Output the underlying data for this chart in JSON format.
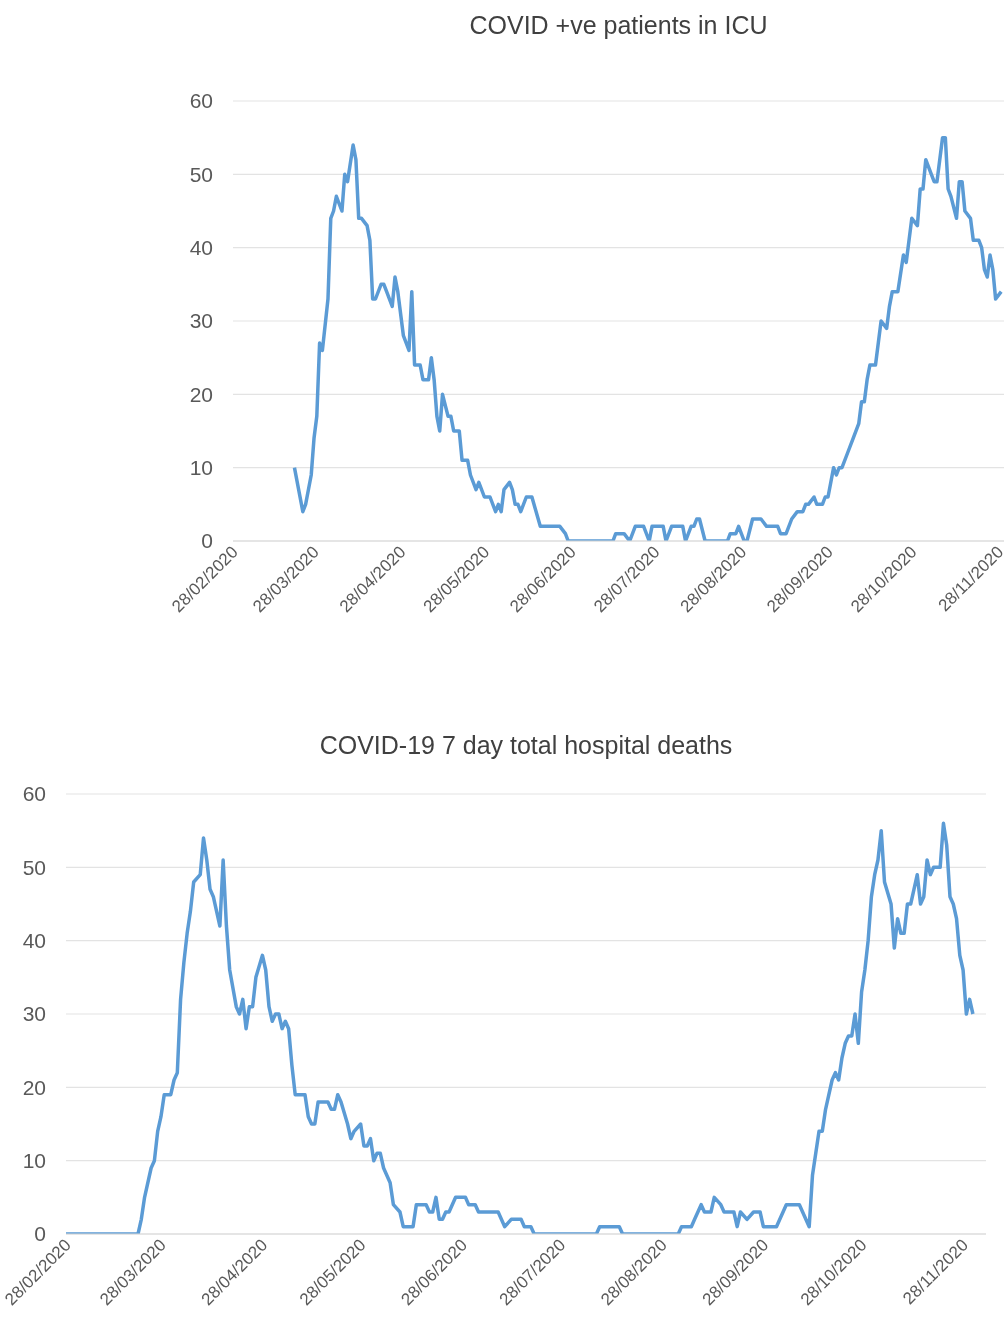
{
  "chart_data": [
    {
      "type": "line",
      "title": "COVID +ve patients in ICU",
      "x": [
        "2020-03-21",
        "2020-03-24",
        "2020-03-25",
        "2020-03-27",
        "2020-03-28",
        "2020-03-29",
        "2020-03-30",
        "2020-03-31",
        "2020-04-02",
        "2020-04-03",
        "2020-04-04",
        "2020-04-05",
        "2020-04-07",
        "2020-04-08",
        "2020-04-09",
        "2020-04-11",
        "2020-04-12",
        "2020-04-13",
        "2020-04-14",
        "2020-04-16",
        "2020-04-17",
        "2020-04-18",
        "2020-04-19",
        "2020-04-21",
        "2020-04-22",
        "2020-04-23",
        "2020-04-25",
        "2020-04-26",
        "2020-04-27",
        "2020-04-29",
        "2020-05-01",
        "2020-05-02",
        "2020-05-03",
        "2020-05-05",
        "2020-05-06",
        "2020-05-08",
        "2020-05-09",
        "2020-05-10",
        "2020-05-11",
        "2020-05-12",
        "2020-05-13",
        "2020-05-15",
        "2020-05-16",
        "2020-05-17",
        "2020-05-19",
        "2020-05-20",
        "2020-05-22",
        "2020-05-23",
        "2020-05-25",
        "2020-05-26",
        "2020-05-28",
        "2020-05-30",
        "2020-06-01",
        "2020-06-02",
        "2020-06-03",
        "2020-06-04",
        "2020-06-06",
        "2020-06-07",
        "2020-06-08",
        "2020-06-09",
        "2020-06-10",
        "2020-06-12",
        "2020-06-14",
        "2020-06-17",
        "2020-06-24",
        "2020-06-26",
        "2020-06-27",
        "2020-07-13",
        "2020-07-14",
        "2020-07-17",
        "2020-07-19",
        "2020-07-21",
        "2020-07-24",
        "2020-07-26",
        "2020-07-27",
        "2020-07-31",
        "2020-08-01",
        "2020-08-03",
        "2020-08-07",
        "2020-08-08",
        "2020-08-10",
        "2020-08-11",
        "2020-08-12",
        "2020-08-13",
        "2020-08-15",
        "2020-08-23",
        "2020-08-24",
        "2020-08-26",
        "2020-08-27",
        "2020-08-29",
        "2020-08-30",
        "2020-09-01",
        "2020-09-04",
        "2020-09-06",
        "2020-09-10",
        "2020-09-11",
        "2020-09-13",
        "2020-09-15",
        "2020-09-17",
        "2020-09-19",
        "2020-09-20",
        "2020-09-21",
        "2020-09-23",
        "2020-09-24",
        "2020-09-26",
        "2020-09-27",
        "2020-09-28",
        "2020-09-30",
        "2020-10-01",
        "2020-10-02",
        "2020-10-03",
        "2020-10-05",
        "2020-10-07",
        "2020-10-09",
        "2020-10-10",
        "2020-10-11",
        "2020-10-12",
        "2020-10-13",
        "2020-10-15",
        "2020-10-16",
        "2020-10-17",
        "2020-10-19",
        "2020-10-20",
        "2020-10-21",
        "2020-10-23",
        "2020-10-25",
        "2020-10-26",
        "2020-10-28",
        "2020-10-30",
        "2020-10-31",
        "2020-11-01",
        "2020-11-02",
        "2020-11-04",
        "2020-11-05",
        "2020-11-06",
        "2020-11-08",
        "2020-11-09",
        "2020-11-10",
        "2020-11-11",
        "2020-11-13",
        "2020-11-14",
        "2020-11-15",
        "2020-11-16",
        "2020-11-18",
        "2020-11-19",
        "2020-11-21",
        "2020-11-22",
        "2020-11-23",
        "2020-11-24",
        "2020-11-25",
        "2020-11-26",
        "2020-11-27",
        "2020-11-29"
      ],
      "series": [
        {
          "color": "#5b9bd5",
          "values": [
            10,
            4,
            5,
            9,
            14,
            17,
            27,
            26,
            33,
            44,
            45,
            47,
            45,
            50,
            49,
            54,
            52,
            44,
            44,
            43,
            41,
            33,
            33,
            35,
            35,
            34,
            32,
            36,
            34,
            28,
            26,
            34,
            24,
            24,
            22,
            22,
            25,
            22,
            17,
            15,
            20,
            17,
            17,
            15,
            15,
            11,
            11,
            9,
            7,
            8,
            6,
            6,
            4,
            5,
            4,
            7,
            8,
            7,
            5,
            5,
            4,
            6,
            6,
            2,
            2,
            1,
            0,
            0,
            1,
            1,
            0,
            2,
            2,
            0,
            2,
            2,
            0,
            2,
            2,
            0,
            2,
            2,
            3,
            3,
            0,
            0,
            1,
            1,
            2,
            0,
            0,
            3,
            3,
            2,
            2,
            1,
            1,
            3,
            4,
            4,
            5,
            5,
            6,
            5,
            5,
            6,
            6,
            10,
            9,
            10,
            10,
            12,
            14,
            16,
            19,
            19,
            22,
            24,
            24,
            27,
            30,
            29,
            32,
            34,
            34,
            39,
            38,
            44,
            43,
            48,
            48,
            52,
            50,
            49,
            49,
            55,
            55,
            48,
            47,
            44,
            49,
            49,
            45,
            44,
            41,
            41,
            40,
            37,
            36,
            39,
            37,
            33,
            34
          ]
        }
      ],
      "xlim": [
        "2020-02-28",
        "2020-11-30"
      ],
      "xticks": [
        {
          "value": "2020-02-28",
          "label": "28/02/2020"
        },
        {
          "value": "2020-03-28",
          "label": "28/03/2020"
        },
        {
          "value": "2020-04-28",
          "label": "28/04/2020"
        },
        {
          "value": "2020-05-28",
          "label": "28/05/2020"
        },
        {
          "value": "2020-06-28",
          "label": "28/06/2020"
        },
        {
          "value": "2020-07-28",
          "label": "28/07/2020"
        },
        {
          "value": "2020-08-28",
          "label": "28/08/2020"
        },
        {
          "value": "2020-09-28",
          "label": "28/09/2020"
        },
        {
          "value": "2020-10-28",
          "label": "28/10/2020"
        },
        {
          "value": "2020-11-28",
          "label": "28/11/2020"
        }
      ],
      "ylim": [
        0,
        60
      ],
      "yticks": [
        0,
        10,
        20,
        30,
        40,
        50,
        60
      ],
      "grid": "y"
    },
    {
      "type": "line",
      "title": "COVID-19 7 day total hospital deaths",
      "x": [
        "2020-02-28",
        "2020-03-21",
        "2020-03-22",
        "2020-03-23",
        "2020-03-25",
        "2020-03-26",
        "2020-03-27",
        "2020-03-28",
        "2020-03-29",
        "2020-03-31",
        "2020-04-01",
        "2020-04-02",
        "2020-04-03",
        "2020-04-04",
        "2020-04-05",
        "2020-04-06",
        "2020-04-07",
        "2020-04-09",
        "2020-04-10",
        "2020-04-11",
        "2020-04-12",
        "2020-04-13",
        "2020-04-14",
        "2020-04-15",
        "2020-04-16",
        "2020-04-17",
        "2020-04-18",
        "2020-04-20",
        "2020-04-21",
        "2020-04-22",
        "2020-04-23",
        "2020-04-24",
        "2020-04-25",
        "2020-04-26",
        "2020-04-28",
        "2020-04-29",
        "2020-04-30",
        "2020-05-01",
        "2020-05-02",
        "2020-05-03",
        "2020-05-04",
        "2020-05-05",
        "2020-05-06",
        "2020-05-07",
        "2020-05-08",
        "2020-05-11",
        "2020-05-12",
        "2020-05-13",
        "2020-05-14",
        "2020-05-15",
        "2020-05-18",
        "2020-05-19",
        "2020-05-20",
        "2020-05-21",
        "2020-05-22",
        "2020-05-24",
        "2020-05-25",
        "2020-05-26",
        "2020-05-28",
        "2020-05-29",
        "2020-05-30",
        "2020-05-31",
        "2020-06-01",
        "2020-06-02",
        "2020-06-03",
        "2020-06-04",
        "2020-06-06",
        "2020-06-07",
        "2020-06-09",
        "2020-06-10",
        "2020-06-13",
        "2020-06-14",
        "2020-06-17",
        "2020-06-18",
        "2020-06-19",
        "2020-06-20",
        "2020-06-21",
        "2020-06-22",
        "2020-06-23",
        "2020-06-24",
        "2020-06-26",
        "2020-06-29",
        "2020-06-30",
        "2020-07-02",
        "2020-07-03",
        "2020-07-09",
        "2020-07-11",
        "2020-07-13",
        "2020-07-16",
        "2020-07-17",
        "2020-07-19",
        "2020-07-20",
        "2020-08-08",
        "2020-08-09",
        "2020-08-15",
        "2020-08-16",
        "2020-09-02",
        "2020-09-03",
        "2020-09-06",
        "2020-09-07",
        "2020-09-09",
        "2020-09-10",
        "2020-09-12",
        "2020-09-13",
        "2020-09-15",
        "2020-09-16",
        "2020-09-19",
        "2020-09-20",
        "2020-09-21",
        "2020-09-23",
        "2020-09-25",
        "2020-09-27",
        "2020-09-28",
        "2020-10-02",
        "2020-10-05",
        "2020-10-09",
        "2020-10-12",
        "2020-10-13",
        "2020-10-14",
        "2020-10-15",
        "2020-10-16",
        "2020-10-17",
        "2020-10-19",
        "2020-10-20",
        "2020-10-21",
        "2020-10-22",
        "2020-10-23",
        "2020-10-24",
        "2020-10-25",
        "2020-10-26",
        "2020-10-27",
        "2020-10-28",
        "2020-10-29",
        "2020-10-30",
        "2020-10-31",
        "2020-11-01",
        "2020-11-02",
        "2020-11-03",
        "2020-11-04",
        "2020-11-06",
        "2020-11-07",
        "2020-11-08",
        "2020-11-09",
        "2020-11-10",
        "2020-11-11",
        "2020-11-12",
        "2020-11-13",
        "2020-11-14",
        "2020-11-15",
        "2020-11-16",
        "2020-11-17",
        "2020-11-18",
        "2020-11-19",
        "2020-11-21",
        "2020-11-22",
        "2020-11-23",
        "2020-11-24",
        "2020-11-25",
        "2020-11-26",
        "2020-11-27",
        "2020-11-28",
        "2020-11-29",
        "2020-11-30",
        "2020-12-01"
      ],
      "series": [
        {
          "color": "#5b9bd5",
          "values": [
            0,
            0,
            2,
            5,
            9,
            10,
            14,
            16,
            19,
            19,
            21,
            22,
            32,
            37,
            41,
            44,
            48,
            49,
            54,
            51,
            47,
            46,
            44,
            42,
            51,
            42,
            36,
            31,
            30,
            32,
            28,
            31,
            31,
            35,
            38,
            36,
            31,
            29,
            30,
            30,
            28,
            29,
            28,
            23,
            19,
            19,
            16,
            15,
            15,
            18,
            18,
            17,
            17,
            19,
            18,
            15,
            13,
            14,
            15,
            12,
            12,
            13,
            10,
            11,
            11,
            9,
            7,
            4,
            3,
            1,
            1,
            4,
            4,
            3,
            3,
            5,
            2,
            2,
            3,
            3,
            5,
            5,
            4,
            4,
            3,
            3,
            1,
            2,
            2,
            1,
            1,
            0,
            0,
            1,
            1,
            0,
            0,
            1,
            1,
            2,
            4,
            3,
            3,
            5,
            4,
            3,
            3,
            1,
            3,
            2,
            3,
            3,
            1,
            1,
            4,
            4,
            1,
            8,
            11,
            14,
            14,
            17,
            21,
            22,
            21,
            24,
            26,
            27,
            27,
            30,
            26,
            33,
            36,
            40,
            46,
            49,
            51,
            55,
            48,
            45,
            39,
            43,
            41,
            41,
            45,
            45,
            47,
            49,
            45,
            46,
            51,
            49,
            50,
            50,
            56,
            53,
            46,
            45,
            43,
            38,
            36,
            30,
            32,
            30
          ]
        }
      ],
      "xlim": [
        "2020-02-28",
        "2020-12-05"
      ],
      "xticks": [
        {
          "value": "2020-02-28",
          "label": "28/02/2020"
        },
        {
          "value": "2020-03-28",
          "label": "28/03/2020"
        },
        {
          "value": "2020-04-28",
          "label": "28/04/2020"
        },
        {
          "value": "2020-05-28",
          "label": "28/05/2020"
        },
        {
          "value": "2020-06-28",
          "label": "28/06/2020"
        },
        {
          "value": "2020-07-28",
          "label": "28/07/2020"
        },
        {
          "value": "2020-08-28",
          "label": "28/08/2020"
        },
        {
          "value": "2020-09-28",
          "label": "28/09/2020"
        },
        {
          "value": "2020-10-28",
          "label": "28/10/2020"
        },
        {
          "value": "2020-11-28",
          "label": "28/11/2020"
        }
      ],
      "ylim": [
        0,
        60
      ],
      "yticks": [
        0,
        10,
        20,
        30,
        40,
        50,
        60
      ],
      "grid": "y"
    }
  ]
}
